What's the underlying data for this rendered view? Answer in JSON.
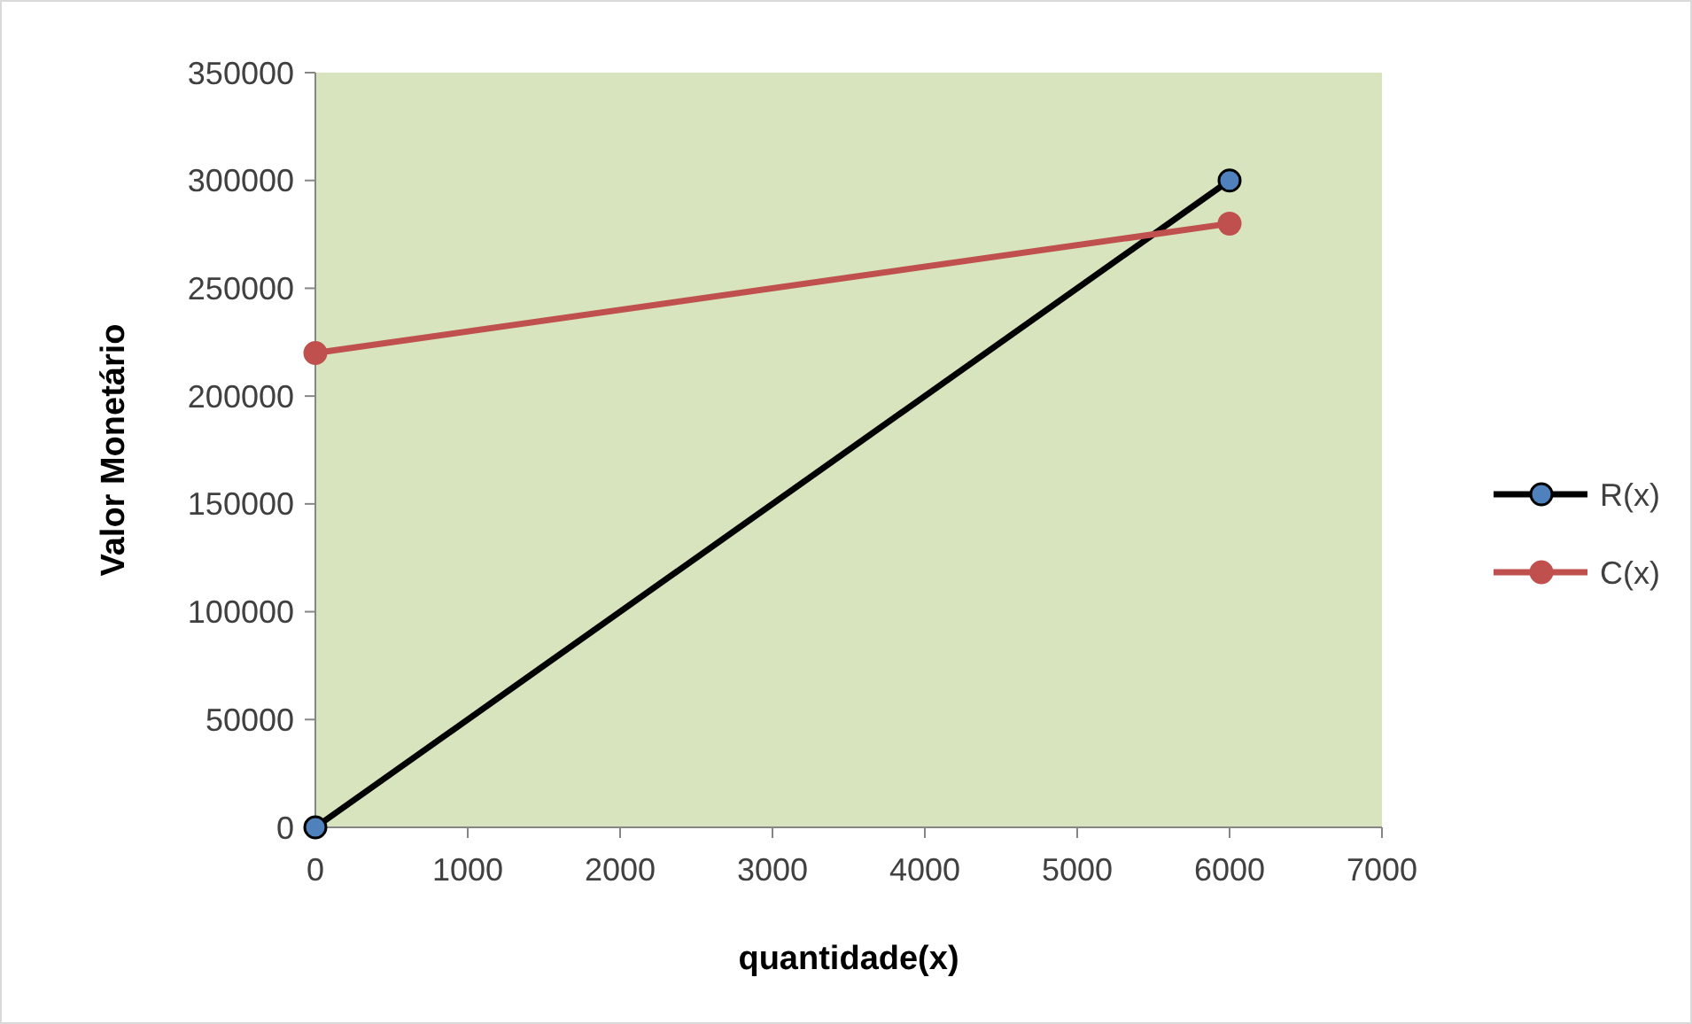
{
  "chart_data": {
    "type": "line",
    "xlabel": "quantidade(x)",
    "ylabel": "Valor Monetário",
    "x": [
      0,
      6000
    ],
    "series": [
      {
        "name": "R(x)",
        "color": "#000000",
        "colors": [
          "#4f81bd",
          "#4f81bd"
        ],
        "values": [
          0,
          300000
        ]
      },
      {
        "name": "C(x)",
        "color": "#c0504d",
        "values": [
          220000,
          280000
        ]
      }
    ],
    "xlim": [
      0,
      7000
    ],
    "xticks": [
      0,
      1000,
      2000,
      3000,
      4000,
      5000,
      6000,
      7000
    ],
    "ylim": [
      0,
      350000
    ],
    "yticks": [
      0,
      50000,
      100000,
      150000,
      200000,
      250000,
      300000,
      350000
    ],
    "grid": false,
    "legend": "right",
    "marker": "circle",
    "line_style": "solid"
  }
}
